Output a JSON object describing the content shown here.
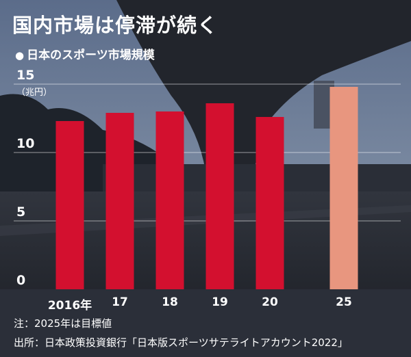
{
  "title": "国内市場は停滞が続く",
  "subtitle": "日本のスポーツ市場規模",
  "bullet": "●",
  "unit": "（兆円）",
  "chart_data": {
    "type": "bar",
    "categories": [
      "2016年",
      "17",
      "18",
      "19",
      "20",
      "25"
    ],
    "values": [
      12.3,
      12.9,
      13.0,
      13.6,
      12.6,
      14.8
    ],
    "target_index": 5,
    "ylim": [
      0,
      15
    ],
    "yticks": [
      "0",
      "5",
      "10",
      "15"
    ],
    "grid": true,
    "colors": {
      "actual": "#d3102f",
      "target": "#e8967f"
    }
  },
  "notes": {
    "line1": "注：2025年は目標値",
    "line2": "出所：日本政策投資銀行「日本版スポーツサテライトアカウント2022」"
  }
}
